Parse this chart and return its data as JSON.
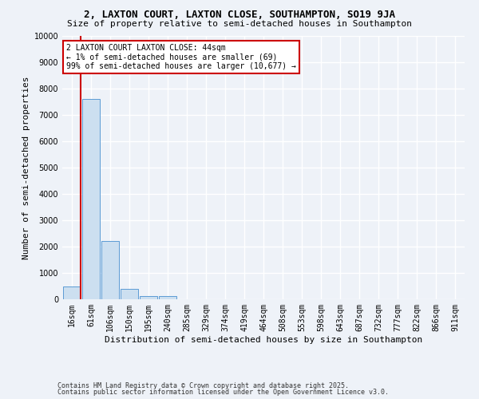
{
  "title1": "2, LAXTON COURT, LAXTON CLOSE, SOUTHAMPTON, SO19 9JA",
  "title2": "Size of property relative to semi-detached houses in Southampton",
  "xlabel": "Distribution of semi-detached houses by size in Southampton",
  "ylabel": "Number of semi-detached properties",
  "footer1": "Contains HM Land Registry data © Crown copyright and database right 2025.",
  "footer2": "Contains public sector information licensed under the Open Government Licence v3.0.",
  "annotation_line1": "2 LAXTON COURT LAXTON CLOSE: 44sqm",
  "annotation_line2": "← 1% of semi-detached houses are smaller (69)",
  "annotation_line3": "99% of semi-detached houses are larger (10,677) →",
  "bar_color": "#ccdff0",
  "bar_edge_color": "#5b9bd5",
  "categories": [
    "16sqm",
    "61sqm",
    "106sqm",
    "150sqm",
    "195sqm",
    "240sqm",
    "285sqm",
    "329sqm",
    "374sqm",
    "419sqm",
    "464sqm",
    "508sqm",
    "553sqm",
    "598sqm",
    "643sqm",
    "687sqm",
    "732sqm",
    "777sqm",
    "822sqm",
    "866sqm",
    "911sqm"
  ],
  "values": [
    500,
    7600,
    2200,
    380,
    130,
    120,
    0,
    0,
    0,
    0,
    0,
    0,
    0,
    0,
    0,
    0,
    0,
    0,
    0,
    0,
    0
  ],
  "ylim": [
    0,
    10000
  ],
  "yticks": [
    0,
    1000,
    2000,
    3000,
    4000,
    5000,
    6000,
    7000,
    8000,
    9000,
    10000
  ],
  "background_color": "#eef2f8",
  "grid_color": "#ffffff",
  "annotation_box_color": "#ffffff",
  "annotation_box_edge_color": "#cc0000",
  "red_line_color": "#cc0000",
  "title1_fontsize": 9,
  "title2_fontsize": 8,
  "ylabel_fontsize": 8,
  "xlabel_fontsize": 8,
  "footer_fontsize": 6,
  "tick_fontsize": 7,
  "annotation_fontsize": 7
}
